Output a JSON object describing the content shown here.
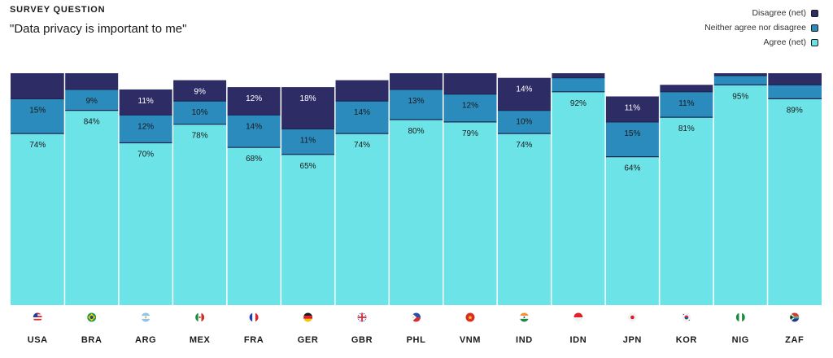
{
  "header": {
    "eyebrow": "SURVEY QUESTION",
    "question": "\"Data privacy is important to me\""
  },
  "legend": [
    {
      "label": "Disagree (net)",
      "color": "#2e2c64"
    },
    {
      "label": "Neither agree nor disagree",
      "color": "#2b8bbd"
    },
    {
      "label": "Agree (net)",
      "color": "#6ce3e6"
    }
  ],
  "chart_data": {
    "type": "bar",
    "stacked": true,
    "categories": [
      "USA",
      "BRA",
      "ARG",
      "MEX",
      "FRA",
      "GER",
      "GBR",
      "PHL",
      "VNM",
      "IND",
      "IDN",
      "JPN",
      "KOR",
      "NIG",
      "ZAF"
    ],
    "series": [
      {
        "name": "Agree (net)",
        "color": "#6ce3e6",
        "values": [
          74,
          84,
          70,
          78,
          68,
          65,
          74,
          80,
          79,
          74,
          92,
          64,
          81,
          95,
          89
        ],
        "labels": [
          "74%",
          "84%",
          "70%",
          "78%",
          "68%",
          "65%",
          "74%",
          "80%",
          "79%",
          "74%",
          "92%",
          "64%",
          "81%",
          "95%",
          "89%"
        ]
      },
      {
        "name": "Neither agree nor disagree",
        "color": "#2b8bbd",
        "values": [
          15,
          9,
          12,
          10,
          14,
          11,
          14,
          13,
          12,
          10,
          6,
          15,
          11,
          4,
          6
        ],
        "labels": [
          "15%",
          "9%",
          "12%",
          "10%",
          "14%",
          "11%",
          "14%",
          "13%",
          "12%",
          "10%",
          "",
          "15%",
          "11%",
          "",
          ""
        ]
      },
      {
        "name": "Disagree (net)",
        "color": "#2e2c64",
        "values": [
          11,
          7,
          11,
          9,
          12,
          18,
          9,
          7,
          9,
          14,
          2,
          11,
          3,
          1,
          5
        ],
        "labels": [
          "",
          "",
          "11%",
          "9%",
          "12%",
          "18%",
          "",
          "",
          "",
          "14%",
          "",
          "11%",
          "",
          "",
          ""
        ]
      }
    ],
    "ylim": [
      0,
      100
    ],
    "flags": [
      {
        "type": "usa"
      },
      {
        "type": "bra"
      },
      {
        "type": "arg"
      },
      {
        "type": "mex"
      },
      {
        "type": "tri",
        "colors": [
          "#1f3fb8",
          "#ffffff",
          "#e0242e"
        ]
      },
      {
        "type": "hz",
        "colors": [
          "#1a1a1a",
          "#dd1f1f",
          "#f5c400"
        ]
      },
      {
        "type": "gbr"
      },
      {
        "type": "phl"
      },
      {
        "type": "vnm"
      },
      {
        "type": "ind"
      },
      {
        "type": "idn"
      },
      {
        "type": "jpn"
      },
      {
        "type": "kor"
      },
      {
        "type": "tri",
        "colors": [
          "#1a8a3c",
          "#ffffff",
          "#1a8a3c"
        ]
      },
      {
        "type": "zaf"
      }
    ]
  }
}
